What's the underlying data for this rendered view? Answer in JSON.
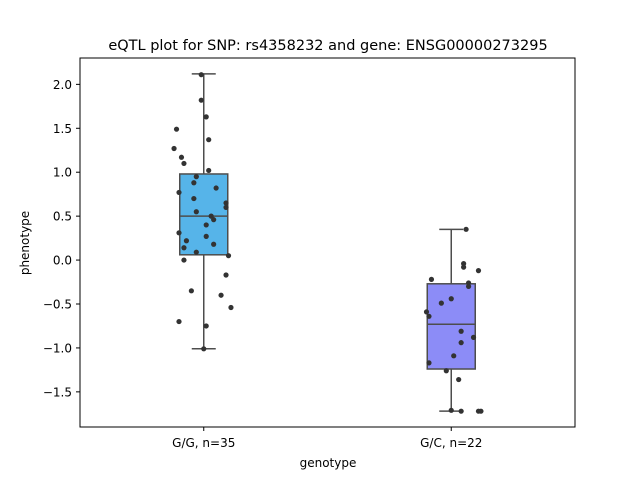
{
  "chart_data": {
    "type": "box",
    "title": "eQTL plot for SNP: rs4358232 and gene: ENSG00000273295",
    "xlabel": "genotype",
    "ylabel": "phenotype",
    "ylim": [
      -1.9,
      2.3
    ],
    "yticks": [
      -1.5,
      -1.0,
      -0.5,
      0.0,
      0.5,
      1.0,
      1.5,
      2.0
    ],
    "ytick_labels": [
      "−1.5",
      "−1.0",
      "−0.5",
      "0.0",
      "0.5",
      "1.0",
      "1.5",
      "2.0"
    ],
    "grid": false,
    "categories": [
      "G/G, n=35",
      "G/C, n=22"
    ],
    "boxes": [
      {
        "category": "G/G, n=35",
        "color": "#56b4e9",
        "whisker_low": -1.01,
        "q1": 0.06,
        "median": 0.5,
        "q3": 0.98,
        "whisker_high": 2.12,
        "points": [
          {
            "x": -0.01,
            "y": 2.11
          },
          {
            "x": -0.01,
            "y": 1.82
          },
          {
            "x": 0.01,
            "y": 1.63
          },
          {
            "x": -0.11,
            "y": 1.49
          },
          {
            "x": 0.02,
            "y": 1.37
          },
          {
            "x": -0.12,
            "y": 1.27
          },
          {
            "x": -0.09,
            "y": 1.17
          },
          {
            "x": -0.08,
            "y": 1.1
          },
          {
            "x": 0.02,
            "y": 1.02
          },
          {
            "x": -0.03,
            "y": 0.95
          },
          {
            "x": -0.04,
            "y": 0.88
          },
          {
            "x": 0.05,
            "y": 0.82
          },
          {
            "x": -0.1,
            "y": 0.77
          },
          {
            "x": -0.04,
            "y": 0.7
          },
          {
            "x": 0.09,
            "y": 0.65
          },
          {
            "x": 0.09,
            "y": 0.6
          },
          {
            "x": -0.03,
            "y": 0.55
          },
          {
            "x": 0.03,
            "y": 0.5
          },
          {
            "x": 0.04,
            "y": 0.46
          },
          {
            "x": 0.01,
            "y": 0.4
          },
          {
            "x": -0.1,
            "y": 0.31
          },
          {
            "x": 0.01,
            "y": 0.27
          },
          {
            "x": -0.07,
            "y": 0.22
          },
          {
            "x": 0.04,
            "y": 0.18
          },
          {
            "x": -0.08,
            "y": 0.14
          },
          {
            "x": -0.03,
            "y": 0.09
          },
          {
            "x": 0.1,
            "y": 0.05
          },
          {
            "x": -0.08,
            "y": 0.0
          },
          {
            "x": 0.09,
            "y": -0.17
          },
          {
            "x": -0.05,
            "y": -0.35
          },
          {
            "x": 0.07,
            "y": -0.4
          },
          {
            "x": 0.11,
            "y": -0.54
          },
          {
            "x": -0.1,
            "y": -0.7
          },
          {
            "x": 0.01,
            "y": -0.75
          },
          {
            "x": 0.0,
            "y": -1.01
          }
        ]
      },
      {
        "category": "G/C, n=22",
        "color": "#8c8cf7",
        "whisker_low": -1.72,
        "q1": -1.24,
        "median": -0.73,
        "q3": -0.27,
        "whisker_high": 0.35,
        "points": [
          {
            "x": 0.06,
            "y": 0.35
          },
          {
            "x": 0.05,
            "y": -0.04
          },
          {
            "x": 0.05,
            "y": -0.08
          },
          {
            "x": 0.11,
            "y": -0.12
          },
          {
            "x": -0.08,
            "y": -0.22
          },
          {
            "x": 0.07,
            "y": -0.26
          },
          {
            "x": 0.07,
            "y": -0.3
          },
          {
            "x": 0.0,
            "y": -0.44
          },
          {
            "x": -0.04,
            "y": -0.49
          },
          {
            "x": -0.1,
            "y": -0.59
          },
          {
            "x": -0.09,
            "y": -0.64
          },
          {
            "x": 0.04,
            "y": -0.81
          },
          {
            "x": 0.09,
            "y": -0.88
          },
          {
            "x": 0.04,
            "y": -0.94
          },
          {
            "x": 0.01,
            "y": -1.09
          },
          {
            "x": -0.09,
            "y": -1.17
          },
          {
            "x": -0.02,
            "y": -1.26
          },
          {
            "x": 0.03,
            "y": -1.36
          },
          {
            "x": 0.0,
            "y": -1.71
          },
          {
            "x": 0.04,
            "y": -1.72
          },
          {
            "x": 0.11,
            "y": -1.72
          },
          {
            "x": 0.12,
            "y": -1.72
          }
        ]
      }
    ],
    "box_edge_color": "#4d4d4d",
    "point_color": "#333333"
  }
}
